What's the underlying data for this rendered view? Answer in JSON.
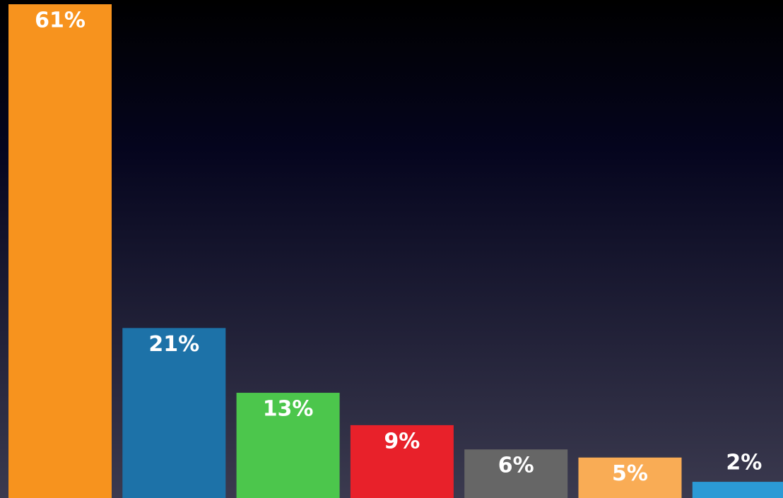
{
  "chart_data": {
    "type": "bar",
    "categories": [
      null,
      null,
      null,
      null,
      null,
      null,
      null
    ],
    "values": [
      61,
      21,
      13,
      9,
      6,
      5,
      2
    ],
    "value_labels": [
      "61%",
      "21%",
      "13%",
      "9%",
      "6%",
      "5%",
      "2%"
    ],
    "colors": [
      "#f7931e",
      "#1d72a8",
      "#4cc64c",
      "#e8212a",
      "#666666",
      "#f9ac55",
      "#2b9ad5"
    ]
  }
}
